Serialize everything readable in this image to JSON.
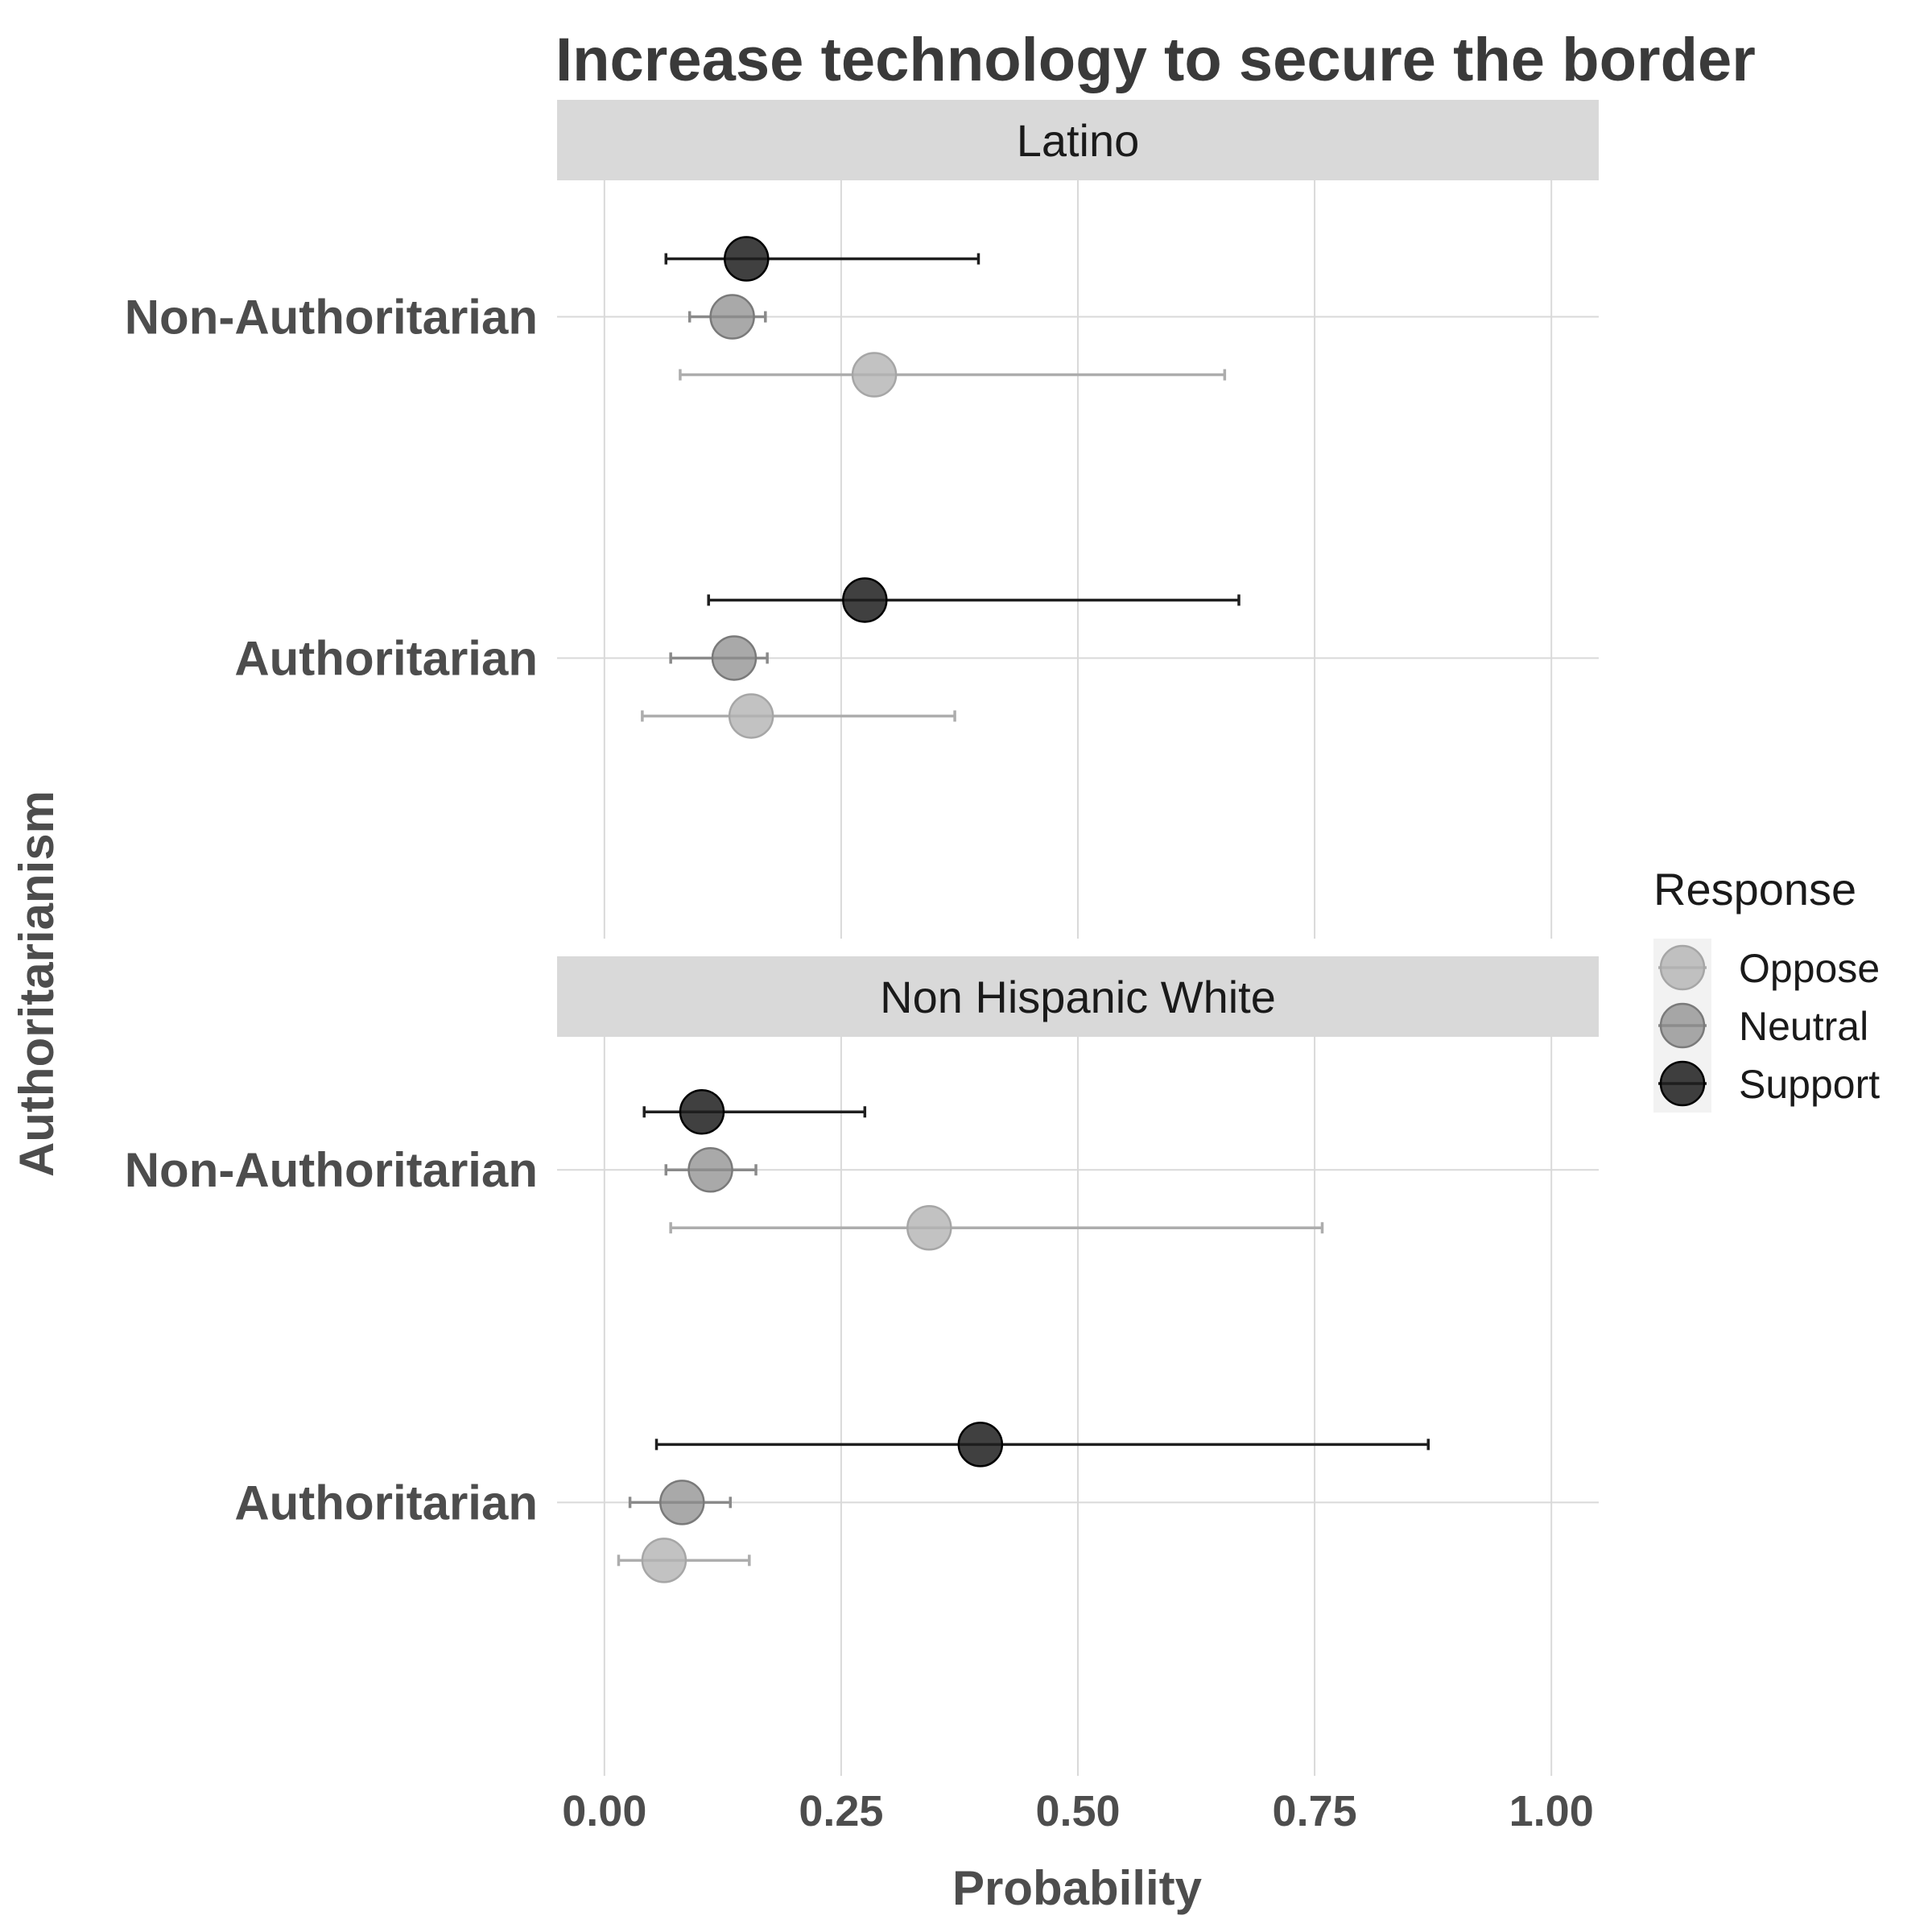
{
  "chart_data": {
    "type": "scatter",
    "title": "Increase technology to secure the border",
    "xlabel": "Probability",
    "ylabel": "Authoritarianism",
    "xlim": [
      -0.05,
      1.05
    ],
    "x_ticks": [
      "0.00",
      "0.25",
      "0.50",
      "0.75",
      "1.00"
    ],
    "x_tick_values": [
      0,
      0.25,
      0.5,
      0.75,
      1.0
    ],
    "categories": [
      "Non-Authoritarian",
      "Authoritarian"
    ],
    "grid": true,
    "legend": {
      "title": "Response",
      "position": "right",
      "entries": [
        "Oppose",
        "Neutral",
        "Support"
      ]
    },
    "colors": {
      "Oppose": "#b3b3b3",
      "Neutral": "#8c8c8c",
      "Support": "#1f1f1f",
      "strip": "#d9d9d9",
      "grid": "#d9d9d9"
    },
    "panels": [
      {
        "name": "Latino",
        "groups": [
          {
            "category": "Non-Authoritarian",
            "points": [
              {
                "response": "Support",
                "estimate": 0.15,
                "low": 0.065,
                "high": 0.395
              },
              {
                "response": "Neutral",
                "estimate": 0.135,
                "low": 0.09,
                "high": 0.17
              },
              {
                "response": "Oppose",
                "estimate": 0.285,
                "low": 0.08,
                "high": 0.655
              }
            ]
          },
          {
            "category": "Authoritarian",
            "points": [
              {
                "response": "Support",
                "estimate": 0.275,
                "low": 0.11,
                "high": 0.67
              },
              {
                "response": "Neutral",
                "estimate": 0.137,
                "low": 0.07,
                "high": 0.172
              },
              {
                "response": "Oppose",
                "estimate": 0.155,
                "low": 0.04,
                "high": 0.37
              }
            ]
          }
        ]
      },
      {
        "name": "Non Hispanic White",
        "groups": [
          {
            "category": "Non-Authoritarian",
            "points": [
              {
                "response": "Support",
                "estimate": 0.103,
                "low": 0.042,
                "high": 0.275
              },
              {
                "response": "Neutral",
                "estimate": 0.112,
                "low": 0.065,
                "high": 0.16
              },
              {
                "response": "Oppose",
                "estimate": 0.343,
                "low": 0.07,
                "high": 0.758
              }
            ]
          },
          {
            "category": "Authoritarian",
            "points": [
              {
                "response": "Support",
                "estimate": 0.397,
                "low": 0.055,
                "high": 0.87
              },
              {
                "response": "Neutral",
                "estimate": 0.082,
                "low": 0.027,
                "high": 0.133
              },
              {
                "response": "Oppose",
                "estimate": 0.063,
                "low": 0.015,
                "high": 0.153
              }
            ]
          }
        ]
      }
    ]
  }
}
